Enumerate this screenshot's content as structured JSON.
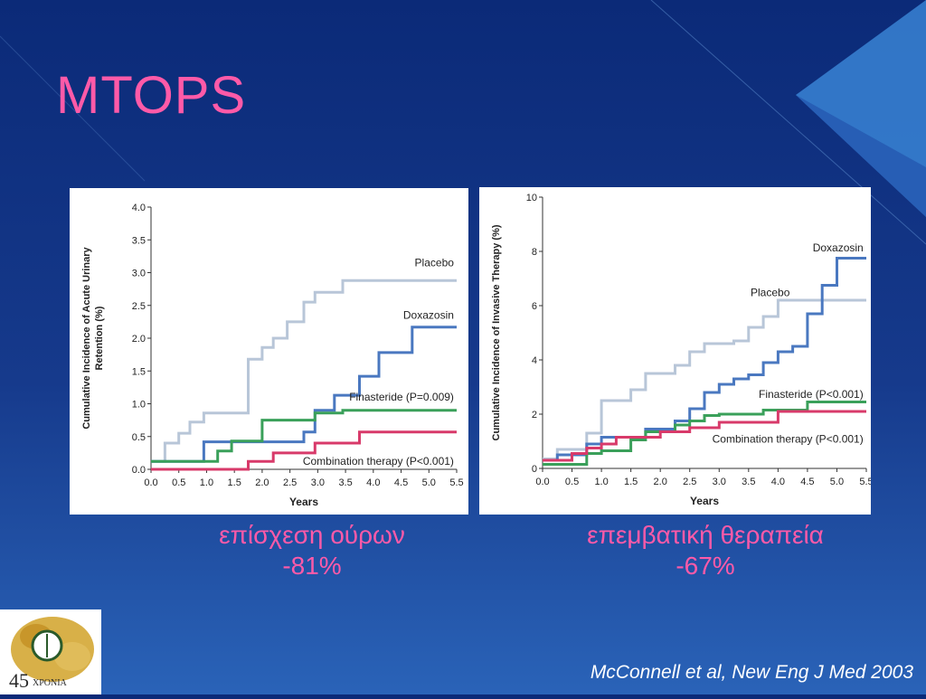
{
  "slide": {
    "title": "MTOPS",
    "caption_left": {
      "line1": "επίσχεση ούρων",
      "line2": "-81%"
    },
    "caption_right": {
      "line1": "επεμβατική θεραπεία",
      "line2": "-67%"
    },
    "citation": "McConnell et al, New Eng J Med 2003",
    "logo_text": "45",
    "logo_subtext": "ΧΡΟΝΙΑ",
    "colors": {
      "title": "#ff5aa8",
      "placebo": "#b8c6d8",
      "doxazosin": "#4a78c0",
      "finasteride": "#3aa05a",
      "combination": "#d83a6a"
    }
  },
  "chart_data": [
    {
      "type": "line",
      "step": true,
      "xlabel": "Years",
      "ylabel": "Cumulative Incidence of Acute Urinary Retention (%)",
      "xlim": [
        0,
        5.5
      ],
      "ylim": [
        0,
        4.0
      ],
      "xticks": [
        "0.0",
        "0.5",
        "1.0",
        "1.5",
        "2.0",
        "2.5",
        "3.0",
        "3.5",
        "4.0",
        "4.5",
        "5.0",
        "5.5"
      ],
      "yticks": [
        "0.0",
        "0.5",
        "1.0",
        "1.5",
        "2.0",
        "2.5",
        "3.0",
        "3.5",
        "4.0"
      ],
      "series": [
        {
          "name": "Placebo",
          "key": "placebo",
          "points": [
            [
              0,
              0.12
            ],
            [
              0.25,
              0.12
            ],
            [
              0.25,
              0.4
            ],
            [
              0.5,
              0.4
            ],
            [
              0.5,
              0.55
            ],
            [
              0.7,
              0.55
            ],
            [
              0.7,
              0.72
            ],
            [
              0.95,
              0.72
            ],
            [
              0.95,
              0.86
            ],
            [
              1.75,
              0.86
            ],
            [
              1.75,
              1.68
            ],
            [
              2.0,
              1.68
            ],
            [
              2.0,
              1.86
            ],
            [
              2.2,
              1.86
            ],
            [
              2.2,
              2.0
            ],
            [
              2.45,
              2.0
            ],
            [
              2.45,
              2.25
            ],
            [
              2.75,
              2.25
            ],
            [
              2.75,
              2.55
            ],
            [
              2.95,
              2.55
            ],
            [
              2.95,
              2.7
            ],
            [
              3.45,
              2.7
            ],
            [
              3.45,
              2.88
            ],
            [
              5.5,
              2.88
            ]
          ]
        },
        {
          "name": "Doxazosin",
          "key": "doxazosin",
          "points": [
            [
              0,
              0.12
            ],
            [
              0.95,
              0.12
            ],
            [
              0.95,
              0.42
            ],
            [
              2.75,
              0.42
            ],
            [
              2.75,
              0.57
            ],
            [
              2.95,
              0.57
            ],
            [
              2.95,
              0.9
            ],
            [
              3.3,
              0.9
            ],
            [
              3.3,
              1.13
            ],
            [
              3.75,
              1.13
            ],
            [
              3.75,
              1.42
            ],
            [
              4.1,
              1.42
            ],
            [
              4.1,
              1.78
            ],
            [
              4.7,
              1.78
            ],
            [
              4.7,
              2.17
            ],
            [
              5.5,
              2.17
            ]
          ]
        },
        {
          "name": "Finasteride (P=0.009)",
          "key": "finasteride",
          "points": [
            [
              0,
              0.12
            ],
            [
              1.2,
              0.12
            ],
            [
              1.2,
              0.28
            ],
            [
              1.45,
              0.28
            ],
            [
              1.45,
              0.43
            ],
            [
              2.0,
              0.43
            ],
            [
              2.0,
              0.75
            ],
            [
              2.95,
              0.75
            ],
            [
              2.95,
              0.86
            ],
            [
              3.45,
              0.86
            ],
            [
              3.45,
              0.9
            ],
            [
              5.5,
              0.9
            ]
          ]
        },
        {
          "name": "Combination therapy (P<0.001)",
          "key": "combination",
          "points": [
            [
              0,
              0.0
            ],
            [
              1.75,
              0.0
            ],
            [
              1.75,
              0.12
            ],
            [
              2.2,
              0.12
            ],
            [
              2.2,
              0.25
            ],
            [
              2.95,
              0.25
            ],
            [
              2.95,
              0.4
            ],
            [
              3.75,
              0.4
            ],
            [
              3.75,
              0.57
            ],
            [
              5.5,
              0.57
            ]
          ]
        }
      ],
      "labels": {
        "placebo": "Placebo",
        "doxazosin": "Doxazosin",
        "finasteride": "Finasteride (P=0.009)",
        "combination": "Combination therapy (P<0.001)"
      }
    },
    {
      "type": "line",
      "step": true,
      "xlabel": "Years",
      "ylabel": "Cumulative Incidence of Invasive Therapy (%)",
      "xlim": [
        0,
        5.5
      ],
      "ylim": [
        0,
        10
      ],
      "xticks": [
        "0.0",
        "0.5",
        "1.0",
        "1.5",
        "2.0",
        "2.5",
        "3.0",
        "3.5",
        "4.0",
        "4.5",
        "5.0",
        "5.5"
      ],
      "yticks": [
        "0",
        "2",
        "4",
        "6",
        "8",
        "10"
      ],
      "series": [
        {
          "name": "Placebo",
          "key": "placebo",
          "points": [
            [
              0,
              0.35
            ],
            [
              0.25,
              0.35
            ],
            [
              0.25,
              0.7
            ],
            [
              0.75,
              0.7
            ],
            [
              0.75,
              1.3
            ],
            [
              1.0,
              1.3
            ],
            [
              1.0,
              2.5
            ],
            [
              1.5,
              2.5
            ],
            [
              1.5,
              2.9
            ],
            [
              1.75,
              2.9
            ],
            [
              1.75,
              3.5
            ],
            [
              2.25,
              3.5
            ],
            [
              2.25,
              3.8
            ],
            [
              2.5,
              3.8
            ],
            [
              2.5,
              4.3
            ],
            [
              2.75,
              4.3
            ],
            [
              2.75,
              4.6
            ],
            [
              3.25,
              4.6
            ],
            [
              3.25,
              4.7
            ],
            [
              3.5,
              4.7
            ],
            [
              3.5,
              5.2
            ],
            [
              3.75,
              5.2
            ],
            [
              3.75,
              5.6
            ],
            [
              4.0,
              5.6
            ],
            [
              4.0,
              6.2
            ],
            [
              5.5,
              6.2
            ]
          ]
        },
        {
          "name": "Doxazosin",
          "key": "doxazosin",
          "points": [
            [
              0,
              0.3
            ],
            [
              0.25,
              0.3
            ],
            [
              0.25,
              0.5
            ],
            [
              0.75,
              0.5
            ],
            [
              0.75,
              0.9
            ],
            [
              1.0,
              0.9
            ],
            [
              1.0,
              1.15
            ],
            [
              1.75,
              1.15
            ],
            [
              1.75,
              1.45
            ],
            [
              2.25,
              1.45
            ],
            [
              2.25,
              1.75
            ],
            [
              2.5,
              1.75
            ],
            [
              2.5,
              2.2
            ],
            [
              2.75,
              2.2
            ],
            [
              2.75,
              2.8
            ],
            [
              3.0,
              2.8
            ],
            [
              3.0,
              3.1
            ],
            [
              3.25,
              3.1
            ],
            [
              3.25,
              3.3
            ],
            [
              3.5,
              3.3
            ],
            [
              3.5,
              3.45
            ],
            [
              3.75,
              3.45
            ],
            [
              3.75,
              3.9
            ],
            [
              4.0,
              3.9
            ],
            [
              4.0,
              4.3
            ],
            [
              4.25,
              4.3
            ],
            [
              4.25,
              4.5
            ],
            [
              4.5,
              4.5
            ],
            [
              4.5,
              5.7
            ],
            [
              4.75,
              5.7
            ],
            [
              4.75,
              6.75
            ],
            [
              5.0,
              6.75
            ],
            [
              5.0,
              7.75
            ],
            [
              5.5,
              7.75
            ]
          ]
        },
        {
          "name": "Finasteride (P<0.001)",
          "key": "finasteride",
          "points": [
            [
              0,
              0.15
            ],
            [
              0.75,
              0.15
            ],
            [
              0.75,
              0.55
            ],
            [
              1.0,
              0.55
            ],
            [
              1.0,
              0.65
            ],
            [
              1.5,
              0.65
            ],
            [
              1.5,
              1.05
            ],
            [
              1.75,
              1.05
            ],
            [
              1.75,
              1.35
            ],
            [
              2.25,
              1.35
            ],
            [
              2.25,
              1.6
            ],
            [
              2.5,
              1.6
            ],
            [
              2.5,
              1.75
            ],
            [
              2.75,
              1.75
            ],
            [
              2.75,
              1.95
            ],
            [
              3.0,
              1.95
            ],
            [
              3.0,
              2.0
            ],
            [
              3.75,
              2.0
            ],
            [
              3.75,
              2.15
            ],
            [
              4.5,
              2.15
            ],
            [
              4.5,
              2.45
            ],
            [
              5.5,
              2.45
            ]
          ]
        },
        {
          "name": "Combination therapy (P<0.001)",
          "key": "combination",
          "points": [
            [
              0,
              0.3
            ],
            [
              0.5,
              0.3
            ],
            [
              0.5,
              0.55
            ],
            [
              0.75,
              0.55
            ],
            [
              0.75,
              0.75
            ],
            [
              1.0,
              0.75
            ],
            [
              1.0,
              0.9
            ],
            [
              1.25,
              0.9
            ],
            [
              1.25,
              1.15
            ],
            [
              2.0,
              1.15
            ],
            [
              2.0,
              1.35
            ],
            [
              2.5,
              1.35
            ],
            [
              2.5,
              1.5
            ],
            [
              3.0,
              1.5
            ],
            [
              3.0,
              1.7
            ],
            [
              4.0,
              1.7
            ],
            [
              4.0,
              2.1
            ],
            [
              5.5,
              2.1
            ]
          ]
        }
      ],
      "labels": {
        "placebo": "Placebo",
        "doxazosin": "Doxazosin",
        "finasteride": "Finasteride (P<0.001)",
        "combination": "Combination therapy (P<0.001)"
      }
    }
  ]
}
